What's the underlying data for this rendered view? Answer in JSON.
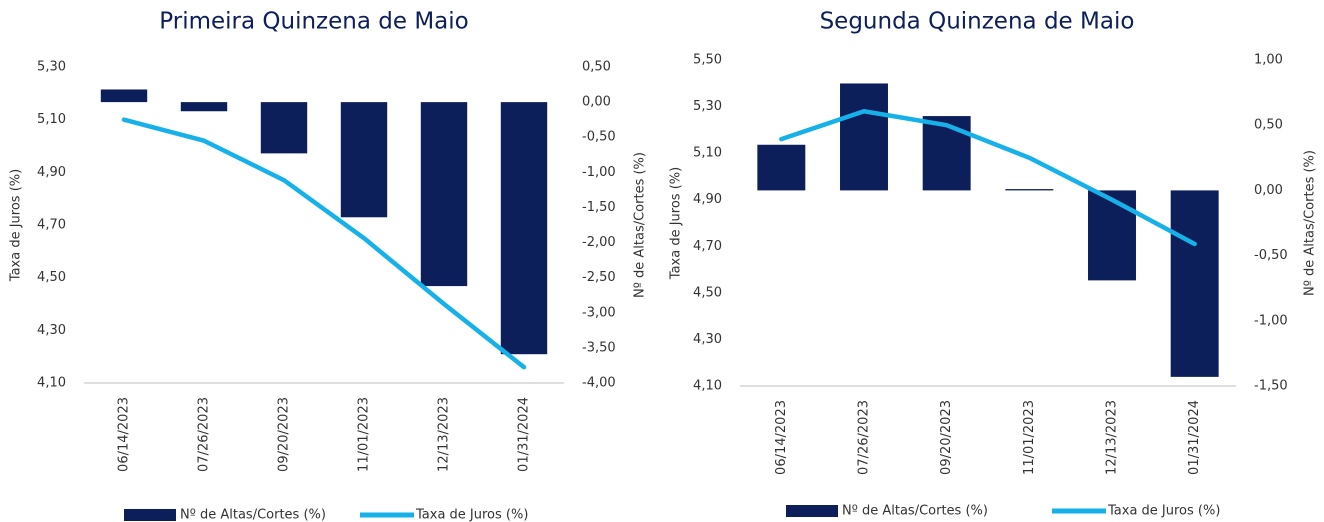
{
  "chart_data": [
    {
      "type": "combo",
      "title": "Primeira Quinzena de Maio",
      "categories": [
        "06/14/2023",
        "07/26/2023",
        "09/20/2023",
        "11/01/2023",
        "12/13/2023",
        "01/31/2024"
      ],
      "series": [
        {
          "name": "Nº de Altas/Cortes (%)",
          "type": "bar",
          "color": "#0c1f5b",
          "axis": "y2",
          "values": [
            0.18,
            -0.13,
            -0.73,
            -1.64,
            -2.62,
            -3.59
          ]
        },
        {
          "name": "Taxa de Juros (%)",
          "type": "line",
          "color": "#16b1e9",
          "axis": "y",
          "values": [
            5.1,
            5.02,
            4.87,
            4.65,
            4.4,
            4.16
          ]
        }
      ],
      "ylabel": "Taxa de Juros (%)",
      "y2label": "Nº de Altas/Cortes (%)",
      "ylim": [
        4.1,
        5.3
      ],
      "yticks": [
        {
          "value": 4.1,
          "label": "4,10"
        },
        {
          "value": 4.3,
          "label": "4,30"
        },
        {
          "value": 4.5,
          "label": "4,50"
        },
        {
          "value": 4.7,
          "label": "4,70"
        },
        {
          "value": 4.9,
          "label": "4,90"
        },
        {
          "value": 5.1,
          "label": "5,10"
        },
        {
          "value": 5.3,
          "label": "5,30"
        }
      ],
      "y2lim": [
        -4.0,
        0.5
      ],
      "y2ticks": [
        {
          "value": -4.0,
          "label": "-4,00"
        },
        {
          "value": -3.5,
          "label": "-3,50"
        },
        {
          "value": -3.0,
          "label": "-3,00"
        },
        {
          "value": -2.5,
          "label": "-2,50"
        },
        {
          "value": -2.0,
          "label": "-2,00"
        },
        {
          "value": -1.5,
          "label": "-1,50"
        },
        {
          "value": -1.0,
          "label": "-1,00"
        },
        {
          "value": -0.5,
          "label": "-0,50"
        },
        {
          "value": 0,
          "label": "0,00"
        },
        {
          "value": 0.5,
          "label": "0,50"
        }
      ]
    },
    {
      "type": "combo",
      "title": "Segunda Quinzena de Maio",
      "categories": [
        "06/14/2023",
        "07/26/2023",
        "09/20/2023",
        "11/01/2023",
        "12/13/2023",
        "01/31/2024"
      ],
      "series": [
        {
          "name": "Nº de Altas/Cortes (%)",
          "type": "bar",
          "color": "#0c1f5b",
          "axis": "y2",
          "values": [
            0.35,
            0.82,
            0.57,
            0.01,
            -0.69,
            -1.43
          ]
        },
        {
          "name": "Taxa de Juros (%)",
          "type": "line",
          "color": "#16b1e9",
          "axis": "y",
          "values": [
            5.16,
            5.28,
            5.22,
            5.08,
            4.9,
            4.71
          ]
        }
      ],
      "ylabel": "Taxa de Juros (%)",
      "y2label": "Nº de Altas/Cortes (%)",
      "ylim": [
        4.1,
        5.5
      ],
      "yticks": [
        {
          "value": 4.1,
          "label": "4,10"
        },
        {
          "value": 4.3,
          "label": "4,30"
        },
        {
          "value": 4.5,
          "label": "4,50"
        },
        {
          "value": 4.7,
          "label": "4,70"
        },
        {
          "value": 4.9,
          "label": "4,90"
        },
        {
          "value": 5.1,
          "label": "5,10"
        },
        {
          "value": 5.3,
          "label": "5,30"
        },
        {
          "value": 5.5,
          "label": "5,50"
        }
      ],
      "y2lim": [
        -1.5,
        1.0
      ],
      "y2ticks": [
        {
          "value": -1.5,
          "label": "-1,50"
        },
        {
          "value": -1.0,
          "label": "-1,00"
        },
        {
          "value": -0.5,
          "label": "-0,50"
        },
        {
          "value": 0,
          "label": "0,00"
        },
        {
          "value": 0.5,
          "label": "0,50"
        },
        {
          "value": 1.0,
          "label": "1,00"
        }
      ]
    }
  ]
}
